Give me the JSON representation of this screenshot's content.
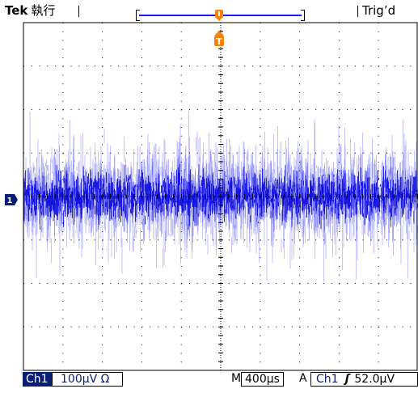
{
  "header": {
    "brand": "Tek",
    "acq_state": "執行",
    "trigger_status": "Trig’d",
    "trigger_position_marker": "T-trigger-point",
    "trigger_marker_label": "T"
  },
  "channel": {
    "marker_label": "1",
    "name": "Ch1",
    "scale": "100µV",
    "coupling_symbol": "Ω"
  },
  "timebase": {
    "label": "M",
    "value": "400µs"
  },
  "trigger": {
    "mode_label": "A",
    "source": "Ch1",
    "slope_symbol": "ʃ",
    "level": "52.0µV"
  },
  "colors": {
    "trace_core": "#0000dd",
    "trace_fringe": "#7a7aff",
    "graticule": "#000000",
    "marker_orange": "#ff7f00",
    "channel_badge": "#0a1e78"
  },
  "waveform": {
    "type": "noise",
    "envelope_divisions": 2.6,
    "core_band_divisions": 0.6
  }
}
